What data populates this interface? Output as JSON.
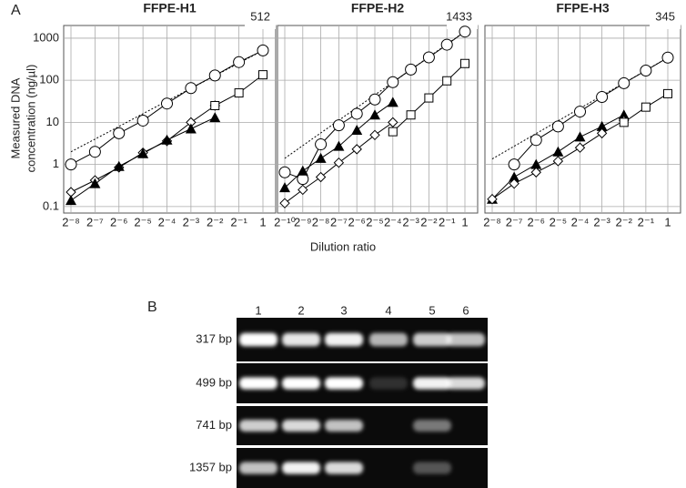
{
  "figure": {
    "panel_a_label": "A",
    "panel_b_label": "B",
    "y_label": [
      "Measured DNA",
      "concentration (ng/µl)"
    ],
    "x_label": "Dilution ratio"
  },
  "chart_data": [
    {
      "type": "line",
      "title": "FFPE-H1",
      "annotation": "512",
      "log_scale": true,
      "grid": true,
      "show_ytick_labels": true,
      "categories": [
        "2⁻⁸",
        "2⁻⁷",
        "2⁻⁶",
        "2⁻⁵",
        "2⁻⁴",
        "2⁻³",
        "2⁻²",
        "2⁻¹",
        "1"
      ],
      "ylim": [
        0.07,
        2000
      ],
      "yticks": [
        0.1,
        1,
        10,
        100,
        1000
      ],
      "series": [
        {
          "marker": "none",
          "line_style": "dotted",
          "color": "#000000",
          "values": [
            2,
            4,
            8,
            16,
            32,
            64,
            128,
            256,
            512
          ]
        },
        {
          "marker": "circle",
          "line_style": "solid",
          "color": "#000000",
          "values": [
            1,
            2,
            5.5,
            11,
            28,
            65,
            130,
            270,
            512
          ]
        },
        {
          "marker": "diamond",
          "line_style": "solid",
          "color": "#000000",
          "values": [
            0.22,
            0.42,
            0.85,
            1.9,
            3.6,
            10,
            25,
            null,
            null
          ]
        },
        {
          "marker": "triangle",
          "line_style": "solid",
          "color": "#000000",
          "values": [
            0.14,
            0.35,
            0.9,
            1.8,
            3.8,
            7,
            13,
            null,
            null
          ]
        },
        {
          "marker": "square",
          "line_style": "solid",
          "color": "#000000",
          "values": [
            null,
            null,
            null,
            null,
            null,
            null,
            25,
            50,
            135
          ]
        }
      ]
    },
    {
      "type": "line",
      "title": "FFPE-H2",
      "annotation": "1433",
      "log_scale": true,
      "grid": true,
      "show_ytick_labels": false,
      "categories": [
        "2⁻¹⁰",
        "2⁻⁹",
        "2⁻⁸",
        "2⁻⁷",
        "2⁻⁶",
        "2⁻⁵",
        "2⁻⁴",
        "2⁻³",
        "2⁻²",
        "2⁻¹",
        "1"
      ],
      "ylim": [
        0.07,
        2000
      ],
      "yticks": [
        0.1,
        1,
        10,
        100,
        1000
      ],
      "series": [
        {
          "marker": "none",
          "line_style": "dotted",
          "color": "#000000",
          "values": [
            1.4,
            2.8,
            5.6,
            11.2,
            22.4,
            44.8,
            89.6,
            179,
            358,
            717,
            1433
          ]
        },
        {
          "marker": "circle",
          "line_style": "solid",
          "color": "#000000",
          "values": [
            0.65,
            0.45,
            3,
            8.5,
            16,
            35,
            90,
            180,
            350,
            700,
            1433
          ]
        },
        {
          "marker": "triangle",
          "line_style": "solid",
          "color": "#000000",
          "values": [
            0.28,
            0.7,
            1.4,
            2.7,
            6.5,
            15,
            30,
            null,
            null,
            null,
            null
          ]
        },
        {
          "marker": "diamond",
          "line_style": "solid",
          "color": "#000000",
          "values": [
            0.12,
            0.25,
            0.5,
            1.1,
            2.3,
            5,
            10,
            null,
            null,
            null,
            null
          ]
        },
        {
          "marker": "square",
          "line_style": "solid",
          "color": "#000000",
          "values": [
            null,
            null,
            null,
            null,
            null,
            null,
            6,
            15,
            38,
            97,
            250
          ]
        }
      ]
    },
    {
      "type": "line",
      "title": "FFPE-H3",
      "annotation": "345",
      "log_scale": true,
      "grid": true,
      "show_ytick_labels": false,
      "categories": [
        "2⁻⁸",
        "2⁻⁷",
        "2⁻⁶",
        "2⁻⁵",
        "2⁻⁴",
        "2⁻³",
        "2⁻²",
        "2⁻¹",
        "1"
      ],
      "ylim": [
        0.07,
        2000
      ],
      "yticks": [
        0.1,
        1,
        10,
        100,
        1000
      ],
      "series": [
        {
          "marker": "none",
          "line_style": "dotted",
          "color": "#000000",
          "values": [
            1.35,
            2.7,
            5.4,
            10.8,
            21.6,
            43,
            86,
            172,
            345
          ]
        },
        {
          "marker": "circle",
          "line_style": "solid",
          "color": "#000000",
          "values": [
            null,
            1,
            3.8,
            8,
            18,
            40,
            85,
            170,
            345
          ]
        },
        {
          "marker": "triangle",
          "line_style": "solid",
          "color": "#000000",
          "values": [
            0.15,
            0.5,
            1,
            2,
            4.5,
            8,
            15,
            null,
            null
          ]
        },
        {
          "marker": "diamond",
          "line_style": "solid",
          "color": "#000000",
          "values": [
            0.15,
            0.35,
            0.65,
            1.2,
            2.5,
            5.5,
            11,
            null,
            null
          ]
        },
        {
          "marker": "square",
          "line_style": "solid",
          "color": "#000000",
          "values": [
            null,
            null,
            null,
            null,
            null,
            null,
            10,
            23,
            48
          ]
        }
      ]
    }
  ],
  "gel": {
    "lanes": [
      "1",
      "2",
      "3",
      "4",
      "5",
      "6"
    ],
    "rows": [
      "317 bp",
      "499 bp",
      "741 bp",
      "1357 bp"
    ]
  }
}
